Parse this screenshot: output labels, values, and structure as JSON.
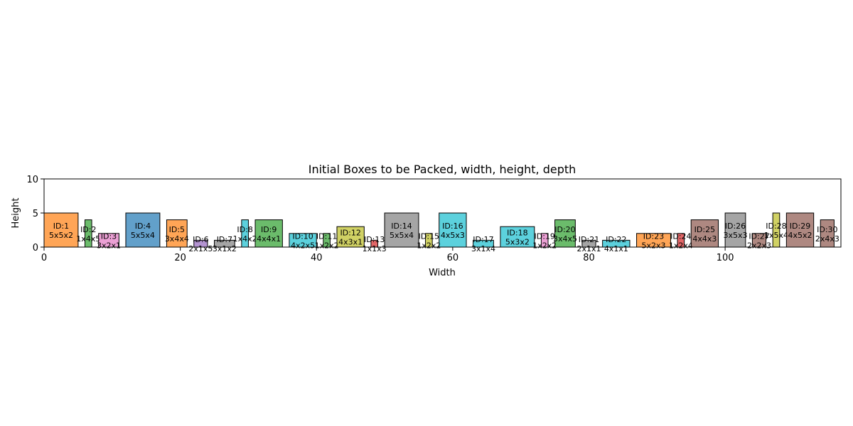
{
  "chart_data": {
    "type": "bar",
    "title": "Initial Boxes to be Packed, width, height, depth",
    "xlabel": "Width",
    "ylabel": "Height",
    "xlim": [
      0,
      117
    ],
    "ylim": [
      0,
      10
    ],
    "x_ticks": [
      "0",
      "20",
      "40",
      "60",
      "80",
      "100"
    ],
    "y_ticks": [
      "0",
      "5",
      "10"
    ],
    "grid": false,
    "boxes": [
      {
        "id_label": "ID:1",
        "dims_label": "5x5x2",
        "x": 0,
        "width": 5,
        "height": 5,
        "color": "#ff7f0e"
      },
      {
        "id_label": "ID:2",
        "dims_label": "1x4x5",
        "x": 6,
        "width": 1,
        "height": 4,
        "color": "#2ca02c"
      },
      {
        "id_label": "ID:3",
        "dims_label": "3x2x1",
        "x": 8,
        "width": 3,
        "height": 2,
        "color": "#e377c2"
      },
      {
        "id_label": "ID:4",
        "dims_label": "5x5x4",
        "x": 12,
        "width": 5,
        "height": 5,
        "color": "#1f77b4"
      },
      {
        "id_label": "ID:5",
        "dims_label": "3x4x4",
        "x": 18,
        "width": 3,
        "height": 4,
        "color": "#ff7f0e"
      },
      {
        "id_label": "ID:6",
        "dims_label": "2x1x5",
        "x": 22,
        "width": 2,
        "height": 1,
        "color": "#9467bd"
      },
      {
        "id_label": "ID:7",
        "dims_label": "3x1x2",
        "x": 25,
        "width": 3,
        "height": 1,
        "color": "#7f7f7f"
      },
      {
        "id_label": "ID:8",
        "dims_label": "1x4x2",
        "x": 29,
        "width": 1,
        "height": 4,
        "color": "#17becf"
      },
      {
        "id_label": "ID:9",
        "dims_label": "4x4x1",
        "x": 31,
        "width": 4,
        "height": 4,
        "color": "#2ca02c"
      },
      {
        "id_label": "ID:10",
        "dims_label": "4x2x5",
        "x": 36,
        "width": 4,
        "height": 2,
        "color": "#17becf"
      },
      {
        "id_label": "ID:11",
        "dims_label": "1x2x2",
        "x": 41,
        "width": 1,
        "height": 2,
        "color": "#2ca02c"
      },
      {
        "id_label": "ID:12",
        "dims_label": "4x3x1",
        "x": 43,
        "width": 4,
        "height": 3,
        "color": "#bcbd22"
      },
      {
        "id_label": "ID:13",
        "dims_label": "1x1x3",
        "x": 48,
        "width": 1,
        "height": 1,
        "color": "#d62728"
      },
      {
        "id_label": "ID:14",
        "dims_label": "5x5x4",
        "x": 50,
        "width": 5,
        "height": 5,
        "color": "#7f7f7f"
      },
      {
        "id_label": "ID:15",
        "dims_label": "1x2x2",
        "x": 56,
        "width": 1,
        "height": 2,
        "color": "#bcbd22"
      },
      {
        "id_label": "ID:16",
        "dims_label": "4x5x3",
        "x": 58,
        "width": 4,
        "height": 5,
        "color": "#17becf"
      },
      {
        "id_label": "ID:17",
        "dims_label": "3x1x4",
        "x": 63,
        "width": 3,
        "height": 1,
        "color": "#17becf"
      },
      {
        "id_label": "ID:18",
        "dims_label": "5x3x2",
        "x": 67,
        "width": 5,
        "height": 3,
        "color": "#17becf"
      },
      {
        "id_label": "ID:19",
        "dims_label": "1x2x2",
        "x": 73,
        "width": 1,
        "height": 2,
        "color": "#e377c2"
      },
      {
        "id_label": "ID:20",
        "dims_label": "3x4x5",
        "x": 75,
        "width": 3,
        "height": 4,
        "color": "#2ca02c"
      },
      {
        "id_label": "ID:21",
        "dims_label": "2x1x1",
        "x": 79,
        "width": 2,
        "height": 1,
        "color": "#7f7f7f"
      },
      {
        "id_label": "ID:22",
        "dims_label": "4x1x1",
        "x": 82,
        "width": 4,
        "height": 1,
        "color": "#17becf"
      },
      {
        "id_label": "ID:23",
        "dims_label": "5x2x3",
        "x": 87,
        "width": 5,
        "height": 2,
        "color": "#ff7f0e"
      },
      {
        "id_label": "ID:24",
        "dims_label": "1x2x4",
        "x": 93,
        "width": 1,
        "height": 2,
        "color": "#d62728"
      },
      {
        "id_label": "ID:25",
        "dims_label": "4x4x3",
        "x": 95,
        "width": 4,
        "height": 4,
        "color": "#8c564b"
      },
      {
        "id_label": "ID:26",
        "dims_label": "3x5x3",
        "x": 100,
        "width": 3,
        "height": 5,
        "color": "#7f7f7f"
      },
      {
        "id_label": "ID:27",
        "dims_label": "2x2x3",
        "x": 104,
        "width": 2,
        "height": 2,
        "color": "#8c564b"
      },
      {
        "id_label": "ID:28",
        "dims_label": "1x5x4",
        "x": 107,
        "width": 1,
        "height": 5,
        "color": "#bcbd22"
      },
      {
        "id_label": "ID:29",
        "dims_label": "4x5x2",
        "x": 109,
        "width": 4,
        "height": 5,
        "color": "#8c564b"
      },
      {
        "id_label": "ID:30",
        "dims_label": "2x4x3",
        "x": 114,
        "width": 2,
        "height": 4,
        "color": "#8c564b"
      }
    ]
  }
}
